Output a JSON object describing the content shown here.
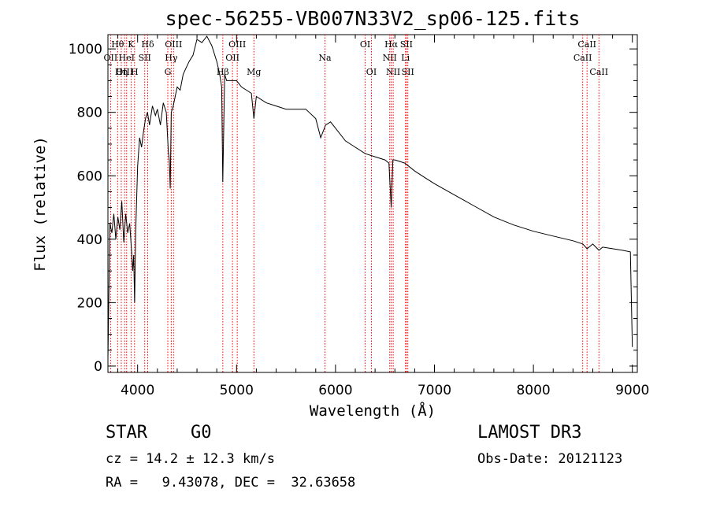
{
  "chart_data": {
    "type": "line",
    "title": "spec-56255-VB007N33V2_sp06-125.fits",
    "xlabel": "Wavelength (Å)",
    "ylabel": "Flux (relative)",
    "xlim": [
      3700,
      9050
    ],
    "ylim": [
      -20,
      1045
    ],
    "x_ticks": [
      4000,
      5000,
      6000,
      7000,
      8000,
      9000
    ],
    "x_tick_labels": [
      "4000",
      "5000",
      "6000",
      "7000",
      "8000",
      "9000"
    ],
    "y_ticks": [
      0,
      200,
      400,
      600,
      800,
      1000
    ],
    "y_tick_labels": [
      "0",
      "200",
      "400",
      "600",
      "800",
      "1000"
    ],
    "grid": false,
    "series": [
      {
        "name": "spectrum",
        "x": [
          3700,
          3720,
          3740,
          3760,
          3780,
          3800,
          3820,
          3840,
          3860,
          3880,
          3900,
          3920,
          3940,
          3950,
          3960,
          3970,
          3980,
          4000,
          4020,
          4040,
          4060,
          4080,
          4100,
          4120,
          4150,
          4180,
          4200,
          4230,
          4260,
          4290,
          4310,
          4320,
          4330,
          4340,
          4360,
          4380,
          4400,
          4430,
          4460,
          4490,
          4520,
          4560,
          4600,
          4650,
          4700,
          4750,
          4800,
          4830,
          4850,
          4861,
          4880,
          4900,
          4950,
          5000,
          5050,
          5100,
          5150,
          5175,
          5200,
          5300,
          5400,
          5500,
          5600,
          5700,
          5800,
          5850,
          5900,
          5950,
          6000,
          6100,
          6200,
          6300,
          6400,
          6500,
          6540,
          6563,
          6580,
          6600,
          6700,
          6800,
          6900,
          7000,
          7200,
          7400,
          7600,
          7800,
          8000,
          8200,
          8400,
          8500,
          8542,
          8600,
          8662,
          8700,
          8800,
          8900,
          8980,
          9000
        ],
        "y": [
          20,
          450,
          420,
          480,
          400,
          470,
          430,
          520,
          390,
          480,
          420,
          450,
          360,
          300,
          350,
          200,
          420,
          630,
          720,
          690,
          740,
          780,
          800,
          760,
          820,
          790,
          810,
          760,
          830,
          800,
          680,
          650,
          560,
          800,
          820,
          850,
          880,
          870,
          920,
          940,
          960,
          980,
          1030,
          1020,
          1040,
          1010,
          960,
          920,
          880,
          580,
          920,
          900,
          900,
          900,
          880,
          870,
          860,
          780,
          850,
          830,
          820,
          810,
          810,
          810,
          780,
          720,
          760,
          770,
          750,
          710,
          690,
          670,
          660,
          650,
          640,
          500,
          650,
          650,
          640,
          615,
          595,
          575,
          540,
          505,
          470,
          445,
          425,
          410,
          395,
          385,
          370,
          385,
          365,
          375,
          370,
          365,
          360,
          60
        ]
      }
    ],
    "line_markers": [
      {
        "name": "Hθ",
        "x": 3798,
        "row": 0
      },
      {
        "name": "OII",
        "x": 3727,
        "row": 1
      },
      {
        "name": "OIII",
        "x": 3869,
        "row": 2
      },
      {
        "name": "K",
        "x": 3934,
        "row": 0
      },
      {
        "name": "HeI",
        "x": 3889,
        "row": 1
      },
      {
        "name": "Hη",
        "x": 3835,
        "row": 2
      },
      {
        "name": "Hδ",
        "x": 4102,
        "row": 0
      },
      {
        "name": "SII",
        "x": 4072,
        "row": 1
      },
      {
        "name": "H",
        "x": 3969,
        "row": 2
      },
      {
        "name": "OIII",
        "x": 4363,
        "row": 0
      },
      {
        "name": "Hγ",
        "x": 4340,
        "row": 1
      },
      {
        "name": "G",
        "x": 4305,
        "row": 2
      },
      {
        "name": "OIII",
        "x": 5007,
        "row": 0
      },
      {
        "name": "OII",
        "x": 4959,
        "row": 1
      },
      {
        "name": "Hβ",
        "x": 4861,
        "row": 2
      },
      {
        "name": "Mg",
        "x": 5175,
        "row": 2
      },
      {
        "name": "Na",
        "x": 5893,
        "row": 1
      },
      {
        "name": "OI",
        "x": 6300,
        "row": 0
      },
      {
        "name": "OI",
        "x": 6363,
        "row": 2
      },
      {
        "name": "Hα",
        "x": 6563,
        "row": 0
      },
      {
        "name": "SII",
        "x": 6716,
        "row": 0
      },
      {
        "name": "NII",
        "x": 6548,
        "row": 1
      },
      {
        "name": "Li",
        "x": 6707,
        "row": 1
      },
      {
        "name": "NII",
        "x": 6583,
        "row": 2
      },
      {
        "name": "SII",
        "x": 6731,
        "row": 2
      },
      {
        "name": "CaII",
        "x": 8542,
        "row": 0
      },
      {
        "name": "CaII",
        "x": 8498,
        "row": 1
      },
      {
        "name": "CaII",
        "x": 8662,
        "row": 2
      }
    ],
    "marker_color": "#ff0000"
  },
  "info": {
    "object_class": "STAR",
    "subclass": "G0",
    "survey": "LAMOST DR3",
    "cz_text": "cz = 14.2 ± 12.3 km/s",
    "obs_date_text": "Obs-Date: 20121123",
    "coords_text": "RA =   9.43078, DEC =  32.63658"
  }
}
